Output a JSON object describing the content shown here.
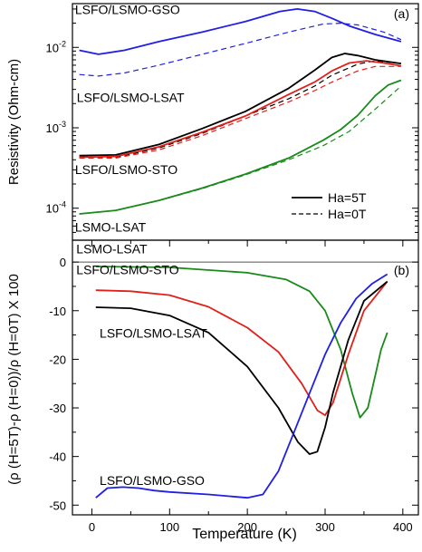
{
  "chart_data": [
    {
      "type": "line",
      "panel_label": "(a)",
      "ylabel": "Resistivity (Ohm-cm)",
      "yscale": "log",
      "xlim": [
        0,
        400
      ],
      "ylim": [
        4e-05,
        0.035
      ],
      "yticks": [
        {
          "value": 0.01,
          "base": "10",
          "exp": "-2"
        },
        {
          "value": 0.001,
          "base": "10",
          "exp": "-3"
        },
        {
          "value": 0.0001,
          "base": "10",
          "exp": "-4"
        }
      ],
      "annotations": [
        {
          "text": "LSFO/LSMO-GSO",
          "x": 3,
          "y": 0.026
        },
        {
          "text": "LSFO/LSMO-LSAT",
          "x": 5,
          "y": 0.0021
        },
        {
          "text": "LSFO/LSMO-STO",
          "x": 3,
          "y": 0.000265
        },
        {
          "text": "LSMO-LSAT",
          "x": 3,
          "y": 5.1e-05
        }
      ],
      "legend": {
        "placement": "bottom-right",
        "items": [
          {
            "label": "Ha=5T",
            "style": "solid"
          },
          {
            "label": "Ha=0T",
            "style": "dashed"
          }
        ]
      },
      "series": [
        {
          "color": "#1f1fe6",
          "style": "solid",
          "x": [
            8,
            30,
            60,
            100,
            150,
            200,
            240,
            260,
            280,
            300,
            320,
            350,
            380
          ],
          "y": [
            0.0092,
            0.0082,
            0.0092,
            0.0118,
            0.0155,
            0.021,
            0.028,
            0.03,
            0.028,
            0.023,
            0.0185,
            0.0145,
            0.0118
          ]
        },
        {
          "color": "#1f1fe6",
          "style": "dashed",
          "x": [
            8,
            30,
            60,
            100,
            150,
            200,
            250,
            290,
            310,
            330,
            360,
            380
          ],
          "y": [
            0.0046,
            0.0044,
            0.0048,
            0.006,
            0.0082,
            0.0112,
            0.0155,
            0.0195,
            0.02,
            0.019,
            0.0155,
            0.0125
          ]
        },
        {
          "color": "#000000",
          "style": "solid",
          "x": [
            8,
            50,
            100,
            150,
            200,
            250,
            280,
            300,
            315,
            330,
            350,
            380
          ],
          "y": [
            0.00045,
            0.00046,
            0.00062,
            0.00098,
            0.0016,
            0.0031,
            0.0052,
            0.0075,
            0.0084,
            0.0079,
            0.007,
            0.0063
          ]
        },
        {
          "color": "#000000",
          "style": "dashed",
          "x": [
            8,
            50,
            100,
            150,
            200,
            250,
            280,
            300,
            330,
            350,
            380
          ],
          "y": [
            0.00043,
            0.00043,
            0.00056,
            0.00085,
            0.0014,
            0.0023,
            0.0033,
            0.0045,
            0.0062,
            0.0068,
            0.0063
          ]
        },
        {
          "color": "#e0201a",
          "style": "solid",
          "x": [
            8,
            50,
            100,
            150,
            200,
            250,
            280,
            300,
            320,
            340,
            360,
            380
          ],
          "y": [
            0.00043,
            0.00044,
            0.00058,
            0.00088,
            0.0014,
            0.0026,
            0.0037,
            0.0051,
            0.0064,
            0.0068,
            0.0064,
            0.0059
          ]
        },
        {
          "color": "#e0201a",
          "style": "dashed",
          "x": [
            8,
            50,
            100,
            150,
            200,
            250,
            280,
            300,
            330,
            350,
            380
          ],
          "y": [
            0.00042,
            0.00042,
            0.00053,
            0.0008,
            0.0013,
            0.0021,
            0.0029,
            0.0037,
            0.0051,
            0.0058,
            0.0058
          ]
        },
        {
          "color": "#1a8a1a",
          "style": "solid",
          "x": [
            8,
            50,
            100,
            150,
            200,
            250,
            290,
            310,
            330,
            350,
            365,
            380
          ],
          "y": [
            8.5e-05,
            9.4e-05,
            0.000125,
            0.000178,
            0.000265,
            0.00042,
            0.0007,
            0.00095,
            0.00143,
            0.0025,
            0.0034,
            0.0039
          ]
        },
        {
          "color": "#1a8a1a",
          "style": "dashed",
          "x": [
            8,
            50,
            100,
            150,
            200,
            250,
            290,
            320,
            350,
            380
          ],
          "y": [
            8.5e-05,
            9.4e-05,
            0.000124,
            0.000175,
            0.00026,
            0.0004,
            0.0006,
            0.0009,
            0.0017,
            0.0033
          ]
        }
      ]
    },
    {
      "type": "line",
      "panel_label": "(b)",
      "xlabel": "Temperature (K)",
      "ylabel": "(ρ (H=5T)-ρ (H=0))/ρ (H=0T) X 100",
      "xlim": [
        -25,
        420
      ],
      "ylim": [
        -52,
        4.5
      ],
      "xticks": [
        0,
        100,
        200,
        300,
        400
      ],
      "yticks": [
        0,
        -10,
        -20,
        -30,
        -40,
        -50
      ],
      "annotations": [
        {
          "text": "LSMO-LSAT",
          "x": -20,
          "y": 1.8
        },
        {
          "text": "LSFO/LSMO-STO",
          "x": -20,
          "y": -2.5
        },
        {
          "text": "LSFO/LSMO-LSAT",
          "x": 10,
          "y": -15.5
        },
        {
          "text": "LSFO/LSMO-GSO",
          "x": 10,
          "y": -45.8
        }
      ],
      "series": [
        {
          "color": "#1a8a1a",
          "x": [
            5,
            100,
            200,
            250,
            280,
            300,
            320,
            335,
            345,
            355,
            365,
            372,
            380
          ],
          "y": [
            -0.9,
            -1.1,
            -2.2,
            -3.6,
            -6.0,
            -10.0,
            -18.0,
            -27.0,
            -32.0,
            -30.0,
            -23.0,
            -18.0,
            -14.5
          ]
        },
        {
          "color": "#e0201a",
          "x": [
            5,
            50,
            100,
            150,
            200,
            240,
            270,
            290,
            300,
            310,
            330,
            350,
            380
          ],
          "y": [
            -5.8,
            -6.0,
            -6.8,
            -9.2,
            -13.5,
            -18.5,
            -25.0,
            -30.5,
            -31.5,
            -29.0,
            -19.0,
            -10.0,
            -4.0
          ]
        },
        {
          "color": "#000000",
          "x": [
            5,
            50,
            100,
            150,
            200,
            240,
            265,
            280,
            290,
            300,
            310,
            330,
            350,
            380
          ],
          "y": [
            -9.3,
            -9.5,
            -11.0,
            -14.5,
            -21.5,
            -30.0,
            -37.0,
            -39.5,
            -39.0,
            -34.0,
            -27.0,
            -16.0,
            -8.0,
            -4.0
          ]
        },
        {
          "color": "#1f1fe6",
          "x": [
            5,
            20,
            40,
            60,
            80,
            100,
            150,
            200,
            220,
            240,
            260,
            280,
            300,
            320,
            340,
            360,
            380
          ],
          "y": [
            -48.5,
            -46.5,
            -46.3,
            -46.5,
            -47.0,
            -47.3,
            -47.8,
            -48.5,
            -47.8,
            -43.0,
            -35.0,
            -27.0,
            -19.0,
            -12.5,
            -7.5,
            -4.5,
            -2.5
          ]
        }
      ]
    }
  ]
}
